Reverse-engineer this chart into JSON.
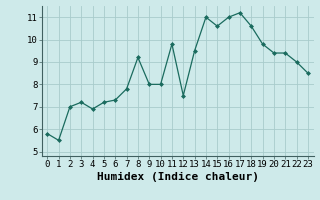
{
  "x": [
    0,
    1,
    2,
    3,
    4,
    5,
    6,
    7,
    8,
    9,
    10,
    11,
    12,
    13,
    14,
    15,
    16,
    17,
    18,
    19,
    20,
    21,
    22,
    23
  ],
  "y": [
    5.8,
    5.5,
    7.0,
    7.2,
    6.9,
    7.2,
    7.3,
    7.8,
    9.2,
    8.0,
    8.0,
    9.8,
    7.5,
    9.5,
    11.0,
    10.6,
    11.0,
    11.2,
    10.6,
    9.8,
    9.4,
    9.4,
    9.0,
    8.5
  ],
  "xlabel": "Humidex (Indice chaleur)",
  "xlim": [
    -0.5,
    23.5
  ],
  "ylim": [
    4.8,
    11.5
  ],
  "yticks": [
    5,
    6,
    7,
    8,
    9,
    10,
    11
  ],
  "xticks": [
    0,
    1,
    2,
    3,
    4,
    5,
    6,
    7,
    8,
    9,
    10,
    11,
    12,
    13,
    14,
    15,
    16,
    17,
    18,
    19,
    20,
    21,
    22,
    23
  ],
  "line_color": "#1a6b5e",
  "marker": "D",
  "marker_size": 2.0,
  "bg_color": "#ceeaea",
  "grid_color": "#a8cccc",
  "tick_label_size": 6.5,
  "xlabel_size": 8.0
}
